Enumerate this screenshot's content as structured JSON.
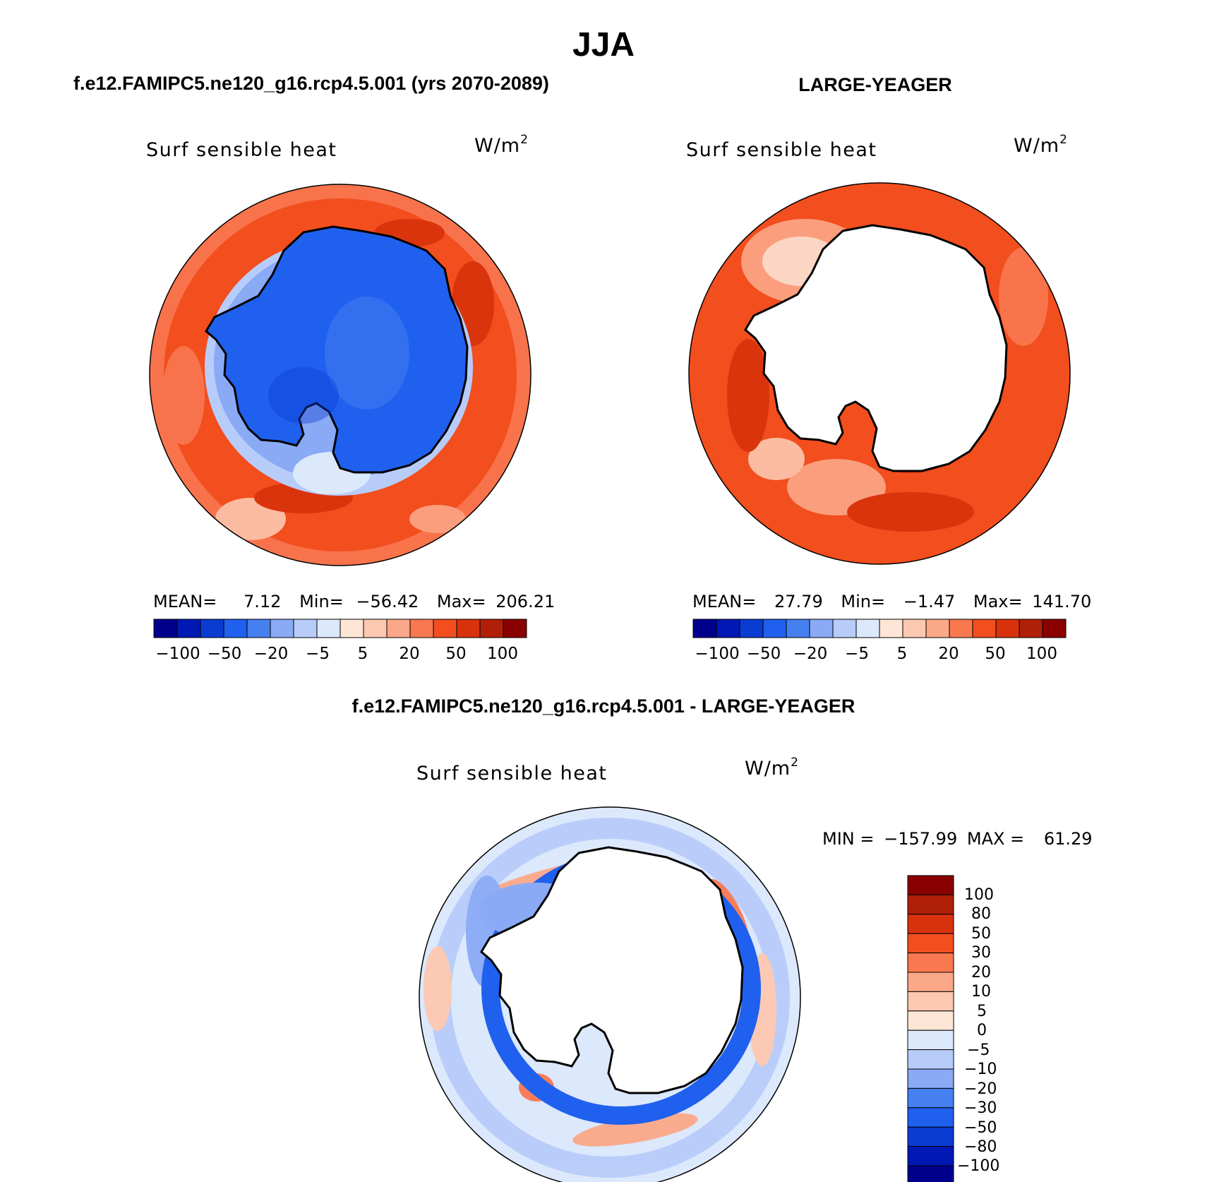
{
  "figure": {
    "title": "JJA"
  },
  "panels": [
    {
      "case_title": "f.e12.FAMIPC5.ne120_g16.rcp4.5.001 (yrs 2070-2089)",
      "variable": "Surf sensible heat",
      "units": "W/m",
      "units_sup": "2",
      "stats": {
        "mean_label": "MEAN=",
        "mean": "7.12",
        "min_label": "Min=",
        "min": "−56.42",
        "max_label": "Max=",
        "max": "206.21"
      },
      "colorbar_labels": [
        "−100",
        "−50",
        "−20",
        "−5",
        "5",
        "20",
        "50",
        "100"
      ]
    },
    {
      "case_title": "LARGE-YEAGER",
      "variable": "Surf sensible heat",
      "units": "W/m",
      "units_sup": "2",
      "stats": {
        "mean_label": "MEAN=",
        "mean": "27.79",
        "min_label": "Min=",
        "min": "−1.47",
        "max_label": "Max=",
        "max": "141.70"
      },
      "colorbar_labels": [
        "−100",
        "−50",
        "−20",
        "−5",
        "5",
        "20",
        "50",
        "100"
      ]
    },
    {
      "case_title": "f.e12.FAMIPC5.ne120_g16.rcp4.5.001 - LARGE-YEAGER",
      "variable": "Surf sensible heat",
      "units": "W/m",
      "units_sup": "2",
      "stats": {
        "min_label": "MIN =",
        "min": "−157.99",
        "max_label": "MAX =",
        "max": "61.29"
      },
      "colorbar_labels": [
        "100",
        "80",
        "50",
        "30",
        "20",
        "10",
        "5",
        "0",
        "−5",
        "−10",
        "−20",
        "−30",
        "−50",
        "−80",
        "−100"
      ]
    }
  ],
  "colorbars": {
    "top_colors": [
      "#00008c",
      "#0018b4",
      "#0a3cd2",
      "#2060ee",
      "#4680f0",
      "#8aaaf6",
      "#b8ccfa",
      "#dce8fc",
      "#fde6d6",
      "#fcc8b0",
      "#fba888",
      "#f97850",
      "#f24e1e",
      "#d8320c",
      "#b02008",
      "#8a0000"
    ],
    "bottom_colors_top_to_bottom": [
      "#8a0000",
      "#b02008",
      "#d8320c",
      "#f24e1e",
      "#f97850",
      "#fba888",
      "#fcc8b0",
      "#fde6d6",
      "#dce8fc",
      "#b8ccfa",
      "#8aaaf6",
      "#4680f0",
      "#2060ee",
      "#0a3cd2",
      "#0018b4",
      "#00008c"
    ]
  }
}
